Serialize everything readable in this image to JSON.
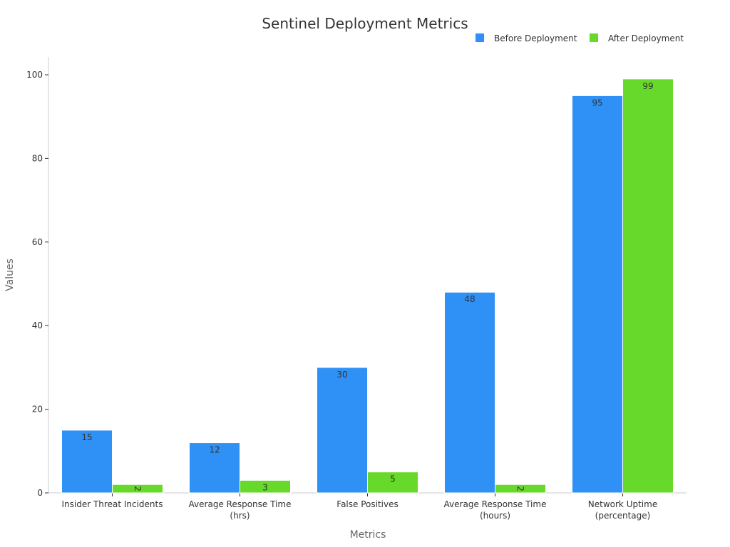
{
  "chart_data": {
    "type": "bar",
    "title": "Sentinel Deployment Metrics",
    "xlabel": "Metrics",
    "ylabel": "Values",
    "categories": [
      "Insider Threat Incidents",
      "Average Response Time (hrs)",
      "False Positives",
      "Average Response Time (hours)",
      "Network Uptime (percentage)"
    ],
    "category_lines": [
      [
        "Insider Threat Incidents"
      ],
      [
        "Average Response Time",
        "(hrs)"
      ],
      [
        "False Positives"
      ],
      [
        "Average Response Time",
        "(hours)"
      ],
      [
        "Network Uptime",
        "(percentage)"
      ]
    ],
    "series": [
      {
        "name": "Before Deployment",
        "color": "#2f91f5",
        "values": [
          15,
          12,
          30,
          48,
          95
        ]
      },
      {
        "name": "After Deployment",
        "color": "#66d92a",
        "values": [
          2,
          3,
          5,
          2,
          99
        ]
      }
    ],
    "ylim": [
      0,
      104
    ],
    "yticks": [
      0,
      20,
      40,
      60,
      80,
      100
    ],
    "grid": false,
    "legend": "top-right"
  }
}
